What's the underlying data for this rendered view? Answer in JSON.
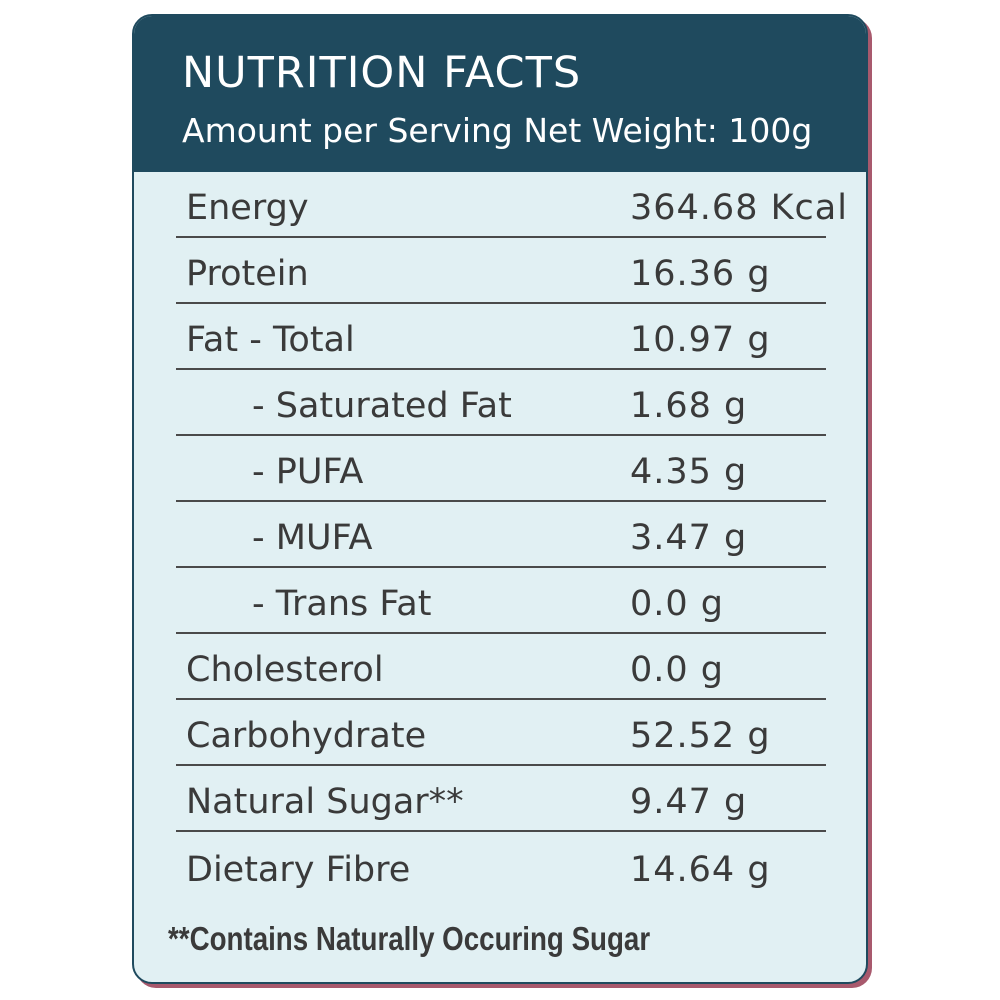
{
  "header": {
    "title": "NUTRITION FACTS",
    "subtitle": "Amount per Serving Net Weight: 100g"
  },
  "rows": [
    {
      "label": "Energy",
      "value": "364.68 Kcal",
      "indent": false
    },
    {
      "label": "Protein",
      "value": "16.36 g",
      "indent": false
    },
    {
      "label": "Fat - Total",
      "value": "10.97 g",
      "indent": false
    },
    {
      "label": "- Saturated Fat",
      "value": "1.68 g",
      "indent": true
    },
    {
      "label": "- PUFA",
      "value": "4.35 g",
      "indent": true
    },
    {
      "label": "- MUFA",
      "value": "3.47 g",
      "indent": true
    },
    {
      "label": "- Trans Fat",
      "value": "0.0 g",
      "indent": true
    },
    {
      "label": "Cholesterol",
      "value": "0.0 g",
      "indent": false
    },
    {
      "label": "Carbohydrate",
      "value": "52.52 g",
      "indent": false
    },
    {
      "label": "Natural Sugar**",
      "value": "9.47 g",
      "indent": false
    },
    {
      "label": "Dietary Fibre",
      "value": "14.64 g",
      "indent": false
    }
  ],
  "footnote": "**Contains Naturally Occuring Sugar",
  "colors": {
    "header_bg": "#1f4a5e",
    "body_bg": "#e1f0f3",
    "accent_shadow": "#a8596d",
    "text": "#3a3a3a"
  }
}
